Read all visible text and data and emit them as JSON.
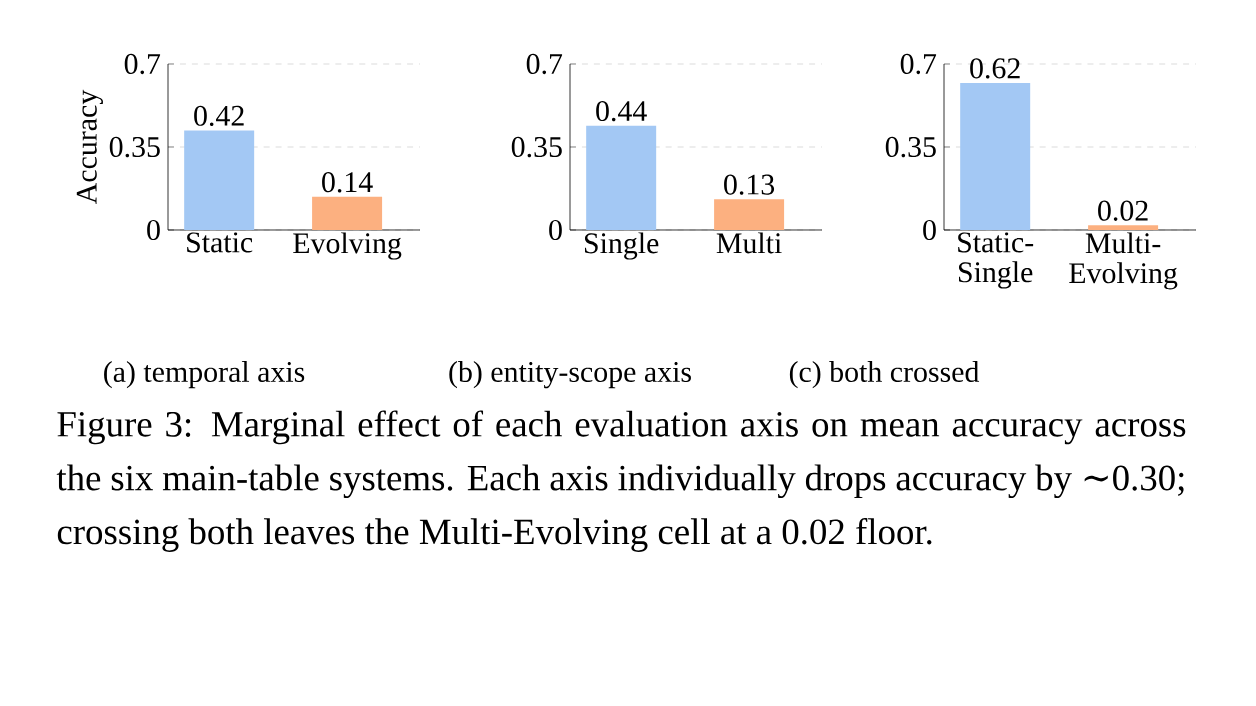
{
  "chart_data": [
    {
      "type": "bar",
      "categories": [
        "Static",
        "Evolving"
      ],
      "values": [
        0.42,
        0.14
      ],
      "colors": [
        "#a3c8f4",
        "#fcb080"
      ],
      "ylim": [
        0,
        0.7
      ],
      "yticks": [
        0,
        0.35,
        0.7
      ],
      "grid": "y",
      "data_labels": true,
      "ylabel": "Accuracy",
      "xlabel": "(a) temporal axis"
    },
    {
      "type": "bar",
      "categories": [
        "Single",
        "Multi"
      ],
      "values": [
        0.44,
        0.13
      ],
      "colors": [
        "#a3c8f4",
        "#fcb080"
      ],
      "ylim": [
        0,
        0.7
      ],
      "yticks": [
        0,
        0.35,
        0.7
      ],
      "grid": "y",
      "data_labels": true,
      "xlabel": "(b) entity-scope axis"
    },
    {
      "type": "bar",
      "categories": [
        "Static-Single",
        "Multi-Evolving"
      ],
      "values": [
        0.62,
        0.02
      ],
      "colors": [
        "#a3c8f4",
        "#fcb080"
      ],
      "ylim": [
        0,
        0.7
      ],
      "yticks": [
        0,
        0.35,
        0.7
      ],
      "grid": "y",
      "data_labels": true,
      "xlabel": "(c) both crossed",
      "annotations": [
        "Figure 3: Marginal effect of each evaluation axis on mean accuracy across the six main-table systems. Each axis individually drops accuracy by ∼0.30; crossing both leaves the Multi-Evolving cell at a 0.02 floor."
      ]
    }
  ]
}
